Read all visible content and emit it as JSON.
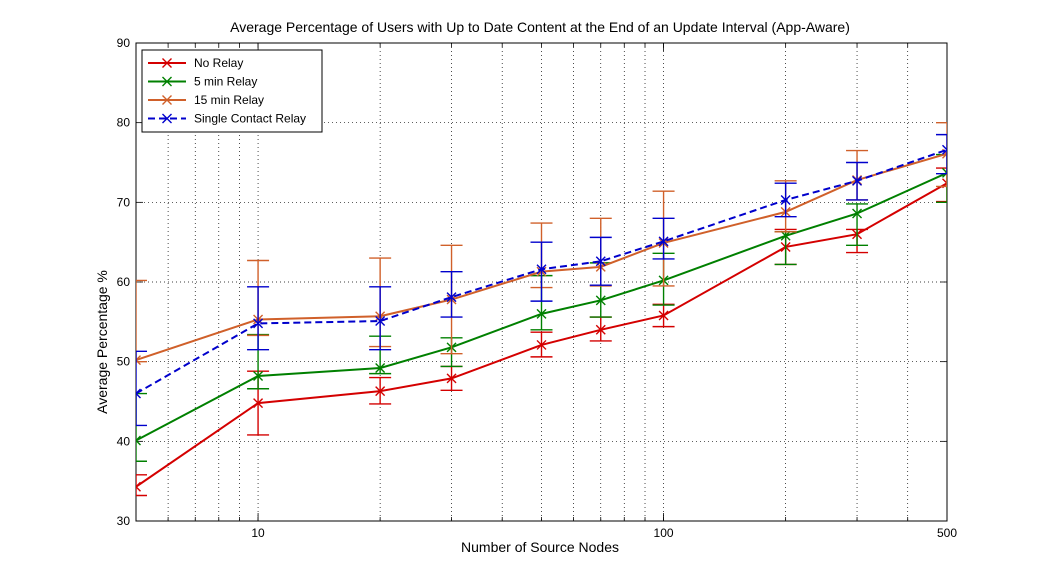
{
  "chart_data": {
    "type": "line",
    "title": "Average Percentage of Users with Up to Date Content at the End of an Update Interval (App-Aware)",
    "xlabel": "Number of Source Nodes",
    "ylabel": "Average Percentage %",
    "xscale": "log",
    "xlim": [
      5,
      500
    ],
    "ylim": [
      30,
      90
    ],
    "x_ticks": [
      10,
      100,
      500
    ],
    "y_ticks": [
      30,
      40,
      50,
      60,
      70,
      80,
      90
    ],
    "grid": true,
    "legend_position": "top-left",
    "x": [
      5,
      10,
      20,
      30,
      50,
      70,
      100,
      200,
      300,
      500
    ],
    "series": [
      {
        "name": "No Relay",
        "color": "#d40000",
        "dashed": false,
        "values": [
          34.3,
          44.8,
          46.3,
          47.9,
          52.1,
          54.0,
          55.8,
          64.4,
          66.0,
          72.4
        ],
        "err_low": [
          33.2,
          40.8,
          44.7,
          46.4,
          50.6,
          52.6,
          54.4,
          62.2,
          63.7,
          70.1
        ],
        "err_high": [
          35.8,
          48.8,
          48.0,
          49.4,
          53.7,
          55.6,
          57.2,
          66.6,
          66.6,
          74.3
        ]
      },
      {
        "name": "5 min Relay",
        "color": "#008000",
        "dashed": false,
        "values": [
          40.1,
          48.2,
          49.2,
          51.8,
          56.0,
          57.7,
          60.2,
          65.8,
          68.6,
          73.7
        ],
        "err_low": [
          37.5,
          46.6,
          48.5,
          49.4,
          54.0,
          55.6,
          57.1,
          62.2,
          64.6,
          70.0
        ],
        "err_high": [
          46.0,
          53.4,
          53.2,
          53.0,
          60.8,
          62.4,
          63.6,
          66.3,
          69.8,
          76.0
        ]
      },
      {
        "name": "15 min Relay",
        "color": "#d0602a",
        "dashed": false,
        "values": [
          50.2,
          55.3,
          55.7,
          57.8,
          61.3,
          61.9,
          64.9,
          68.8,
          72.8,
          76.1
        ],
        "err_low": [
          50.0,
          53.3,
          51.9,
          51.0,
          59.3,
          59.5,
          59.5,
          66.3,
          70.3,
          72.0
        ],
        "err_high": [
          60.2,
          62.7,
          63.0,
          64.6,
          67.4,
          68.0,
          71.4,
          72.7,
          76.5,
          80.0
        ]
      },
      {
        "name": "Single Contact Relay",
        "color": "#0000cc",
        "dashed": true,
        "values": [
          46.0,
          54.8,
          55.1,
          58.1,
          61.6,
          62.6,
          65.1,
          70.3,
          72.7,
          76.6
        ],
        "err_low": [
          42.0,
          51.5,
          51.5,
          55.6,
          57.6,
          59.6,
          62.9,
          68.2,
          70.3,
          73.6
        ],
        "err_high": [
          51.3,
          59.4,
          59.4,
          61.3,
          65.0,
          65.6,
          68.0,
          72.4,
          75.0,
          78.5
        ]
      }
    ]
  }
}
